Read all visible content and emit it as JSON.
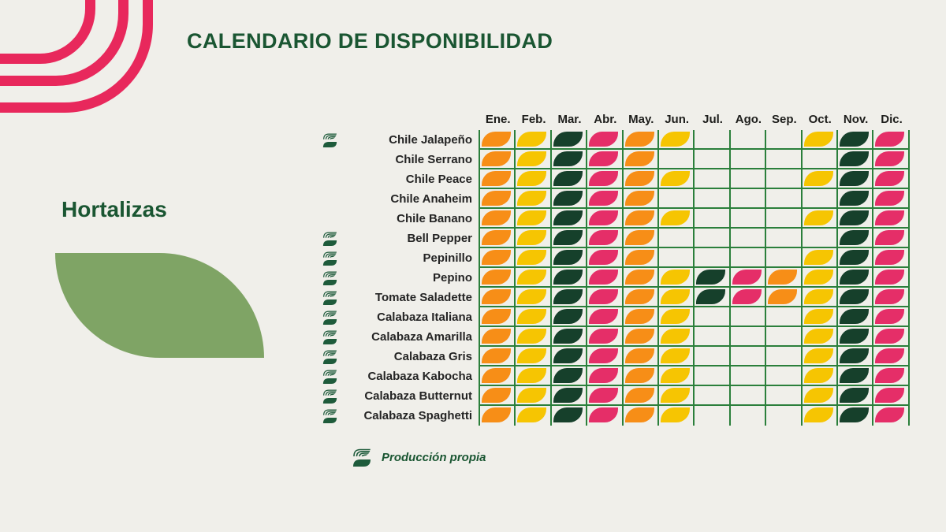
{
  "title": "CALENDARIO DE DISPONIBILIDAD",
  "category": "Hortalizas",
  "legend_label": "Producción propia",
  "colors": {
    "background": "#F0EFEA",
    "accent_pink": "#E8285C",
    "title_green": "#1A5632",
    "big_leaf_green": "#7FA465",
    "grid_green": "#2B7F3B",
    "label_text": "#242424",
    "logo_green": "#1E5B3B"
  },
  "chart_data": {
    "type": "heatmap",
    "title": "CALENDARIO DE DISPONIBILIDAD",
    "subtitle": "Hortalizas",
    "columns": [
      "Ene.",
      "Feb.",
      "Mar.",
      "Abr.",
      "May.",
      "Jun.",
      "Jul.",
      "Ago.",
      "Sep.",
      "Oct.",
      "Nov.",
      "Dic."
    ],
    "color_key": {
      "O": "#F78E17",
      "Y": "#F6C502",
      "G": "#16402B",
      "P": "#E52E68"
    },
    "empty_value": "",
    "own_production_marker": "leaf-logo",
    "rows": [
      {
        "name": "Chile Jalapeño",
        "own_production": true,
        "values": [
          "O",
          "Y",
          "G",
          "P",
          "O",
          "Y",
          "",
          "",
          "",
          "Y",
          "G",
          "P"
        ]
      },
      {
        "name": "Chile Serrano",
        "own_production": false,
        "values": [
          "O",
          "Y",
          "G",
          "P",
          "O",
          "",
          "",
          "",
          "",
          "",
          "G",
          "P"
        ]
      },
      {
        "name": "Chile Peace",
        "own_production": false,
        "values": [
          "O",
          "Y",
          "G",
          "P",
          "O",
          "Y",
          "",
          "",
          "",
          "Y",
          "G",
          "P"
        ]
      },
      {
        "name": "Chile Anaheim",
        "own_production": false,
        "values": [
          "O",
          "Y",
          "G",
          "P",
          "O",
          "",
          "",
          "",
          "",
          "",
          "G",
          "P"
        ]
      },
      {
        "name": "Chile Banano",
        "own_production": false,
        "values": [
          "O",
          "Y",
          "G",
          "P",
          "O",
          "Y",
          "",
          "",
          "",
          "Y",
          "G",
          "P"
        ]
      },
      {
        "name": "Bell Pepper",
        "own_production": true,
        "values": [
          "O",
          "Y",
          "G",
          "P",
          "O",
          "",
          "",
          "",
          "",
          "",
          "G",
          "P"
        ]
      },
      {
        "name": "Pepinillo",
        "own_production": true,
        "values": [
          "O",
          "Y",
          "G",
          "P",
          "O",
          "",
          "",
          "",
          "",
          "Y",
          "G",
          "P"
        ]
      },
      {
        "name": "Pepino",
        "own_production": true,
        "values": [
          "O",
          "Y",
          "G",
          "P",
          "O",
          "Y",
          "G",
          "P",
          "O",
          "Y",
          "G",
          "P"
        ]
      },
      {
        "name": "Tomate Saladette",
        "own_production": true,
        "values": [
          "O",
          "Y",
          "G",
          "P",
          "O",
          "Y",
          "G",
          "P",
          "O",
          "Y",
          "G",
          "P"
        ]
      },
      {
        "name": "Calabaza Italiana",
        "own_production": true,
        "values": [
          "O",
          "Y",
          "G",
          "P",
          "O",
          "Y",
          "",
          "",
          "",
          "Y",
          "G",
          "P"
        ]
      },
      {
        "name": "Calabaza Amarilla",
        "own_production": true,
        "values": [
          "O",
          "Y",
          "G",
          "P",
          "O",
          "Y",
          "",
          "",
          "",
          "Y",
          "G",
          "P"
        ]
      },
      {
        "name": "Calabaza Gris",
        "own_production": true,
        "values": [
          "O",
          "Y",
          "G",
          "P",
          "O",
          "Y",
          "",
          "",
          "",
          "Y",
          "G",
          "P"
        ]
      },
      {
        "name": "Calabaza Kabocha",
        "own_production": true,
        "values": [
          "O",
          "Y",
          "G",
          "P",
          "O",
          "Y",
          "",
          "",
          "",
          "Y",
          "G",
          "P"
        ]
      },
      {
        "name": "Calabaza Butternut",
        "own_production": true,
        "values": [
          "O",
          "Y",
          "G",
          "P",
          "O",
          "Y",
          "",
          "",
          "",
          "Y",
          "G",
          "P"
        ]
      },
      {
        "name": "Calabaza Spaghetti",
        "own_production": true,
        "values": [
          "O",
          "Y",
          "G",
          "P",
          "O",
          "Y",
          "",
          "",
          "",
          "Y",
          "G",
          "P"
        ]
      }
    ]
  }
}
